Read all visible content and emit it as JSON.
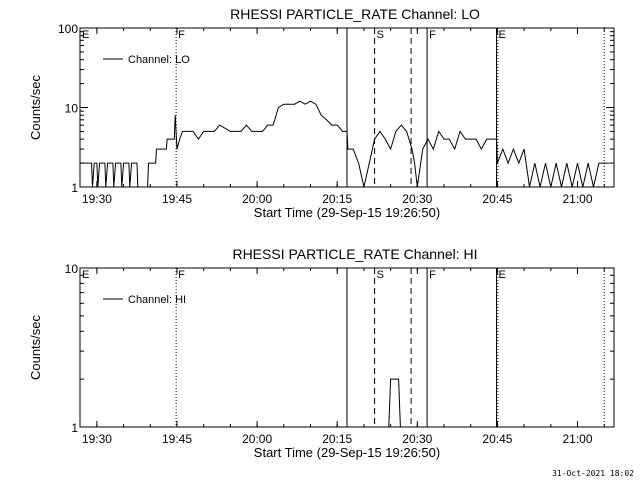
{
  "chart_data": [
    {
      "type": "line",
      "title": "RHESSI PARTICLE_RATE Channel: LO",
      "xlabel": "Start Time (29-Sep-15 19:26:50)",
      "ylabel": "Counts/sec",
      "yscale": "log",
      "ylim": [
        1,
        100
      ],
      "y_ticks": [
        "1",
        "10",
        "100"
      ],
      "x_ticks": [
        "19:30",
        "19:45",
        "20:00",
        "20:15",
        "20:30",
        "20:45",
        "21:00"
      ],
      "xlim": [
        "19:26:50",
        "21:06:50"
      ],
      "legend": {
        "entries": [
          "Channel: LO"
        ],
        "position": "top-left"
      },
      "markers": [
        {
          "label": "E",
          "time": "19:26:50",
          "style": "none"
        },
        {
          "label": "F",
          "time": "19:44:50",
          "style": "dotted"
        },
        {
          "label": "",
          "time": "20:16:50",
          "style": "solid"
        },
        {
          "label": "S",
          "time": "20:22:00",
          "style": "dashed"
        },
        {
          "label": "",
          "time": "20:28:50",
          "style": "dashed"
        },
        {
          "label": "F",
          "time": "20:31:50",
          "style": "solid"
        },
        {
          "label": "E",
          "time": "20:44:50",
          "style": "solid"
        },
        {
          "label": "",
          "time": "20:45:05",
          "style": "dotted"
        },
        {
          "label": "",
          "time": "21:05:00",
          "style": "dotted"
        }
      ],
      "series": [
        {
          "name": "Channel: LO",
          "points": [
            [
              "19:26:50",
              2
            ],
            [
              "19:29:00",
              2
            ],
            [
              "19:29:10",
              1
            ],
            [
              "19:29:30",
              2
            ],
            [
              "19:30:00",
              2
            ],
            [
              "19:30:10",
              1
            ],
            [
              "19:30:30",
              2
            ],
            [
              "19:31:30",
              2
            ],
            [
              "19:31:40",
              1
            ],
            [
              "19:32:00",
              2
            ],
            [
              "19:33:00",
              2
            ],
            [
              "19:33:10",
              1
            ],
            [
              "19:33:30",
              2
            ],
            [
              "19:34:30",
              2
            ],
            [
              "19:34:40",
              1
            ],
            [
              "19:35:00",
              2
            ],
            [
              "19:36:00",
              2
            ],
            [
              "19:36:10",
              1
            ],
            [
              "19:36:30",
              2
            ],
            [
              "19:37:30",
              2
            ],
            [
              "19:37:40",
              1
            ],
            [
              "19:38:00",
              1
            ],
            [
              "19:39:30",
              1
            ],
            [
              "19:39:40",
              2
            ],
            [
              "19:41:00",
              2
            ],
            [
              "19:41:10",
              3
            ],
            [
              "19:43:00",
              3
            ],
            [
              "19:43:10",
              4
            ],
            [
              "19:44:30",
              4
            ],
            [
              "19:44:40",
              8
            ],
            [
              "19:45:00",
              3
            ],
            [
              "19:45:30",
              4
            ],
            [
              "19:46:00",
              5
            ],
            [
              "19:48:00",
              5
            ],
            [
              "19:49:00",
              4
            ],
            [
              "19:50:00",
              5
            ],
            [
              "19:52:00",
              5
            ],
            [
              "19:53:00",
              6
            ],
            [
              "19:55:00",
              5
            ],
            [
              "19:57:00",
              5
            ],
            [
              "19:58:00",
              6
            ],
            [
              "19:59:00",
              5
            ],
            [
              "20:00:00",
              5
            ],
            [
              "20:01:00",
              5
            ],
            [
              "20:02:00",
              6
            ],
            [
              "20:03:00",
              6
            ],
            [
              "20:04:00",
              10
            ],
            [
              "20:05:00",
              11
            ],
            [
              "20:07:00",
              11
            ],
            [
              "20:08:00",
              12
            ],
            [
              "20:09:00",
              11
            ],
            [
              "20:10:00",
              12
            ],
            [
              "20:11:00",
              11
            ],
            [
              "20:12:00",
              8
            ],
            [
              "20:13:00",
              7
            ],
            [
              "20:14:00",
              6
            ],
            [
              "20:15:00",
              6
            ],
            [
              "20:16:00",
              5
            ],
            [
              "20:16:50",
              5
            ],
            [
              "20:17:00",
              3
            ],
            [
              "20:18:00",
              3
            ],
            [
              "20:19:00",
              2
            ],
            [
              "20:20:00",
              1
            ],
            [
              "20:21:00",
              2
            ],
            [
              "20:22:00",
              4
            ],
            [
              "20:23:00",
              5
            ],
            [
              "20:24:00",
              4
            ],
            [
              "20:25:00",
              3
            ],
            [
              "20:26:00",
              5
            ],
            [
              "20:27:00",
              6
            ],
            [
              "20:28:00",
              5
            ],
            [
              "20:29:00",
              3
            ],
            [
              "20:29:30",
              2
            ],
            [
              "20:30:00",
              1
            ],
            [
              "20:31:00",
              3
            ],
            [
              "20:32:00",
              4
            ],
            [
              "20:33:00",
              3
            ],
            [
              "20:34:00",
              5
            ],
            [
              "20:35:00",
              4
            ],
            [
              "20:36:00",
              4
            ],
            [
              "20:37:00",
              3
            ],
            [
              "20:38:00",
              5
            ],
            [
              "20:39:00",
              4
            ],
            [
              "20:40:00",
              4
            ],
            [
              "20:41:00",
              4
            ],
            [
              "20:42:00",
              3
            ],
            [
              "20:43:00",
              4
            ],
            [
              "20:44:00",
              4
            ],
            [
              "20:44:50",
              4
            ],
            [
              "20:45:00",
              2
            ],
            [
              "20:46:00",
              3
            ],
            [
              "20:47:00",
              2
            ],
            [
              "20:48:00",
              3
            ],
            [
              "20:49:00",
              2
            ],
            [
              "20:50:00",
              3
            ],
            [
              "20:51:00",
              1
            ],
            [
              "20:52:00",
              2
            ],
            [
              "20:53:00",
              1
            ],
            [
              "20:54:00",
              2
            ],
            [
              "20:55:00",
              1
            ],
            [
              "20:56:00",
              2
            ],
            [
              "20:57:00",
              1
            ],
            [
              "20:58:00",
              2
            ],
            [
              "20:59:00",
              1
            ],
            [
              "21:00:00",
              2
            ],
            [
              "21:01:00",
              1
            ],
            [
              "21:02:00",
              2
            ],
            [
              "21:03:00",
              1
            ],
            [
              "21:04:00",
              2
            ],
            [
              "21:05:00",
              2
            ],
            [
              "21:06:00",
              2
            ]
          ]
        }
      ]
    },
    {
      "type": "line",
      "title": "RHESSI PARTICLE_RATE Channel: HI",
      "xlabel": "Start Time (29-Sep-15 19:26:50)",
      "ylabel": "Counts/sec",
      "yscale": "log",
      "ylim": [
        1,
        10
      ],
      "y_ticks": [
        "1",
        "10"
      ],
      "x_ticks": [
        "19:30",
        "19:45",
        "20:00",
        "20:15",
        "20:30",
        "20:45",
        "21:00"
      ],
      "xlim": [
        "19:26:50",
        "21:06:50"
      ],
      "legend": {
        "entries": [
          "Channel: HI"
        ],
        "position": "top-left"
      },
      "markers": [
        {
          "label": "E",
          "time": "19:26:50",
          "style": "none"
        },
        {
          "label": "F",
          "time": "19:44:50",
          "style": "dotted"
        },
        {
          "label": "",
          "time": "20:16:50",
          "style": "solid"
        },
        {
          "label": "S",
          "time": "20:22:00",
          "style": "dashed"
        },
        {
          "label": "",
          "time": "20:28:50",
          "style": "dashed"
        },
        {
          "label": "F",
          "time": "20:31:50",
          "style": "solid"
        },
        {
          "label": "E",
          "time": "20:44:50",
          "style": "solid"
        },
        {
          "label": "",
          "time": "20:45:05",
          "style": "dotted"
        },
        {
          "label": "",
          "time": "21:05:00",
          "style": "dotted"
        }
      ],
      "series": [
        {
          "name": "Channel: HI",
          "points": [
            [
              "20:24:40",
              1
            ],
            [
              "20:25:00",
              2
            ],
            [
              "20:26:00",
              2
            ],
            [
              "20:26:30",
              2
            ],
            [
              "20:26:50",
              1
            ]
          ]
        }
      ]
    }
  ],
  "footer": {
    "timestamp": "31-Oct-2021 18:02"
  }
}
